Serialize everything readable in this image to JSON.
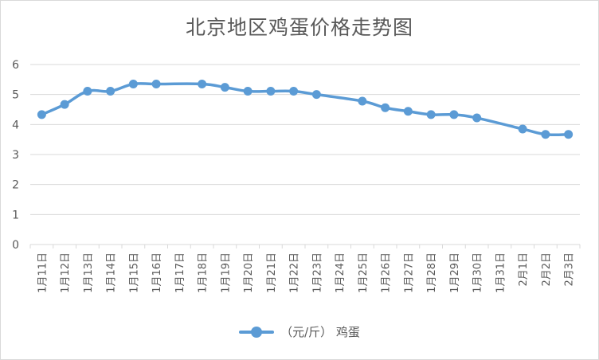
{
  "chart_data": {
    "type": "line",
    "title": "北京地区鸡蛋价格走势图",
    "xlabel": "",
    "ylabel": "",
    "ylim": [
      0,
      6
    ],
    "yticks": [
      "0",
      "1",
      "2",
      "3",
      "4",
      "5",
      "6"
    ],
    "grid": true,
    "legend": "bottom",
    "colors": {
      "series": "#5b9bd5",
      "grid": "#d9d9d9",
      "text": "#595959"
    },
    "categories": [
      "1月11日",
      "1月12日",
      "1月13日",
      "1月14日",
      "1月15日",
      "1月16日",
      "1月17日",
      "1月18日",
      "1月19日",
      "1月20日",
      "1月21日",
      "1月22日",
      "1月23日",
      "1月24日",
      "1月25日",
      "1月26日",
      "1月27日",
      "1月28日",
      "1月29日",
      "1月30日",
      "1月31日",
      "2月1日",
      "2月2日",
      "2月3日"
    ],
    "series": [
      {
        "name": "（元/斤） 鸡蛋",
        "values": [
          4.33,
          4.67,
          5.11,
          5.11,
          5.35,
          5.35,
          null,
          5.35,
          5.24,
          5.11,
          5.11,
          5.11,
          5.0,
          null,
          4.78,
          4.56,
          4.44,
          4.33,
          4.33,
          4.22,
          null,
          3.85,
          3.67,
          3.67
        ]
      }
    ]
  }
}
